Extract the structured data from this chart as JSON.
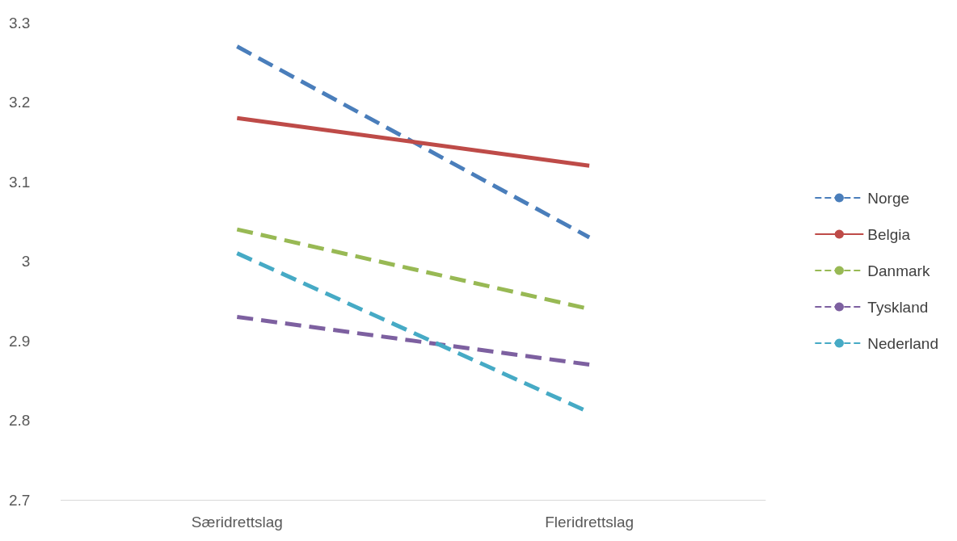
{
  "chart_data": {
    "type": "line",
    "categories": [
      "Særidrettslag",
      "Fleridrettslag"
    ],
    "series": [
      {
        "name": "Norge",
        "color": "#4a7ebb",
        "values": [
          3.27,
          3.03
        ],
        "line_style": "dashed"
      },
      {
        "name": "Belgia",
        "color": "#be4b48",
        "values": [
          3.18,
          3.12
        ],
        "line_style": "solid"
      },
      {
        "name": "Danmark",
        "color": "#98b954",
        "values": [
          3.04,
          2.94
        ],
        "line_style": "dashed"
      },
      {
        "name": "Tyskland",
        "color": "#7d60a0",
        "values": [
          2.93,
          2.87
        ],
        "line_style": "dashed"
      },
      {
        "name": "Nederland",
        "color": "#46aac5",
        "values": [
          3.01,
          2.81
        ],
        "line_style": "dashed"
      }
    ],
    "ylim": [
      2.7,
      3.3
    ],
    "yticks": [
      2.7,
      2.8,
      2.9,
      3,
      3.1,
      3.2,
      3.3
    ],
    "grid": false,
    "legend": "right",
    "marker": "none"
  }
}
